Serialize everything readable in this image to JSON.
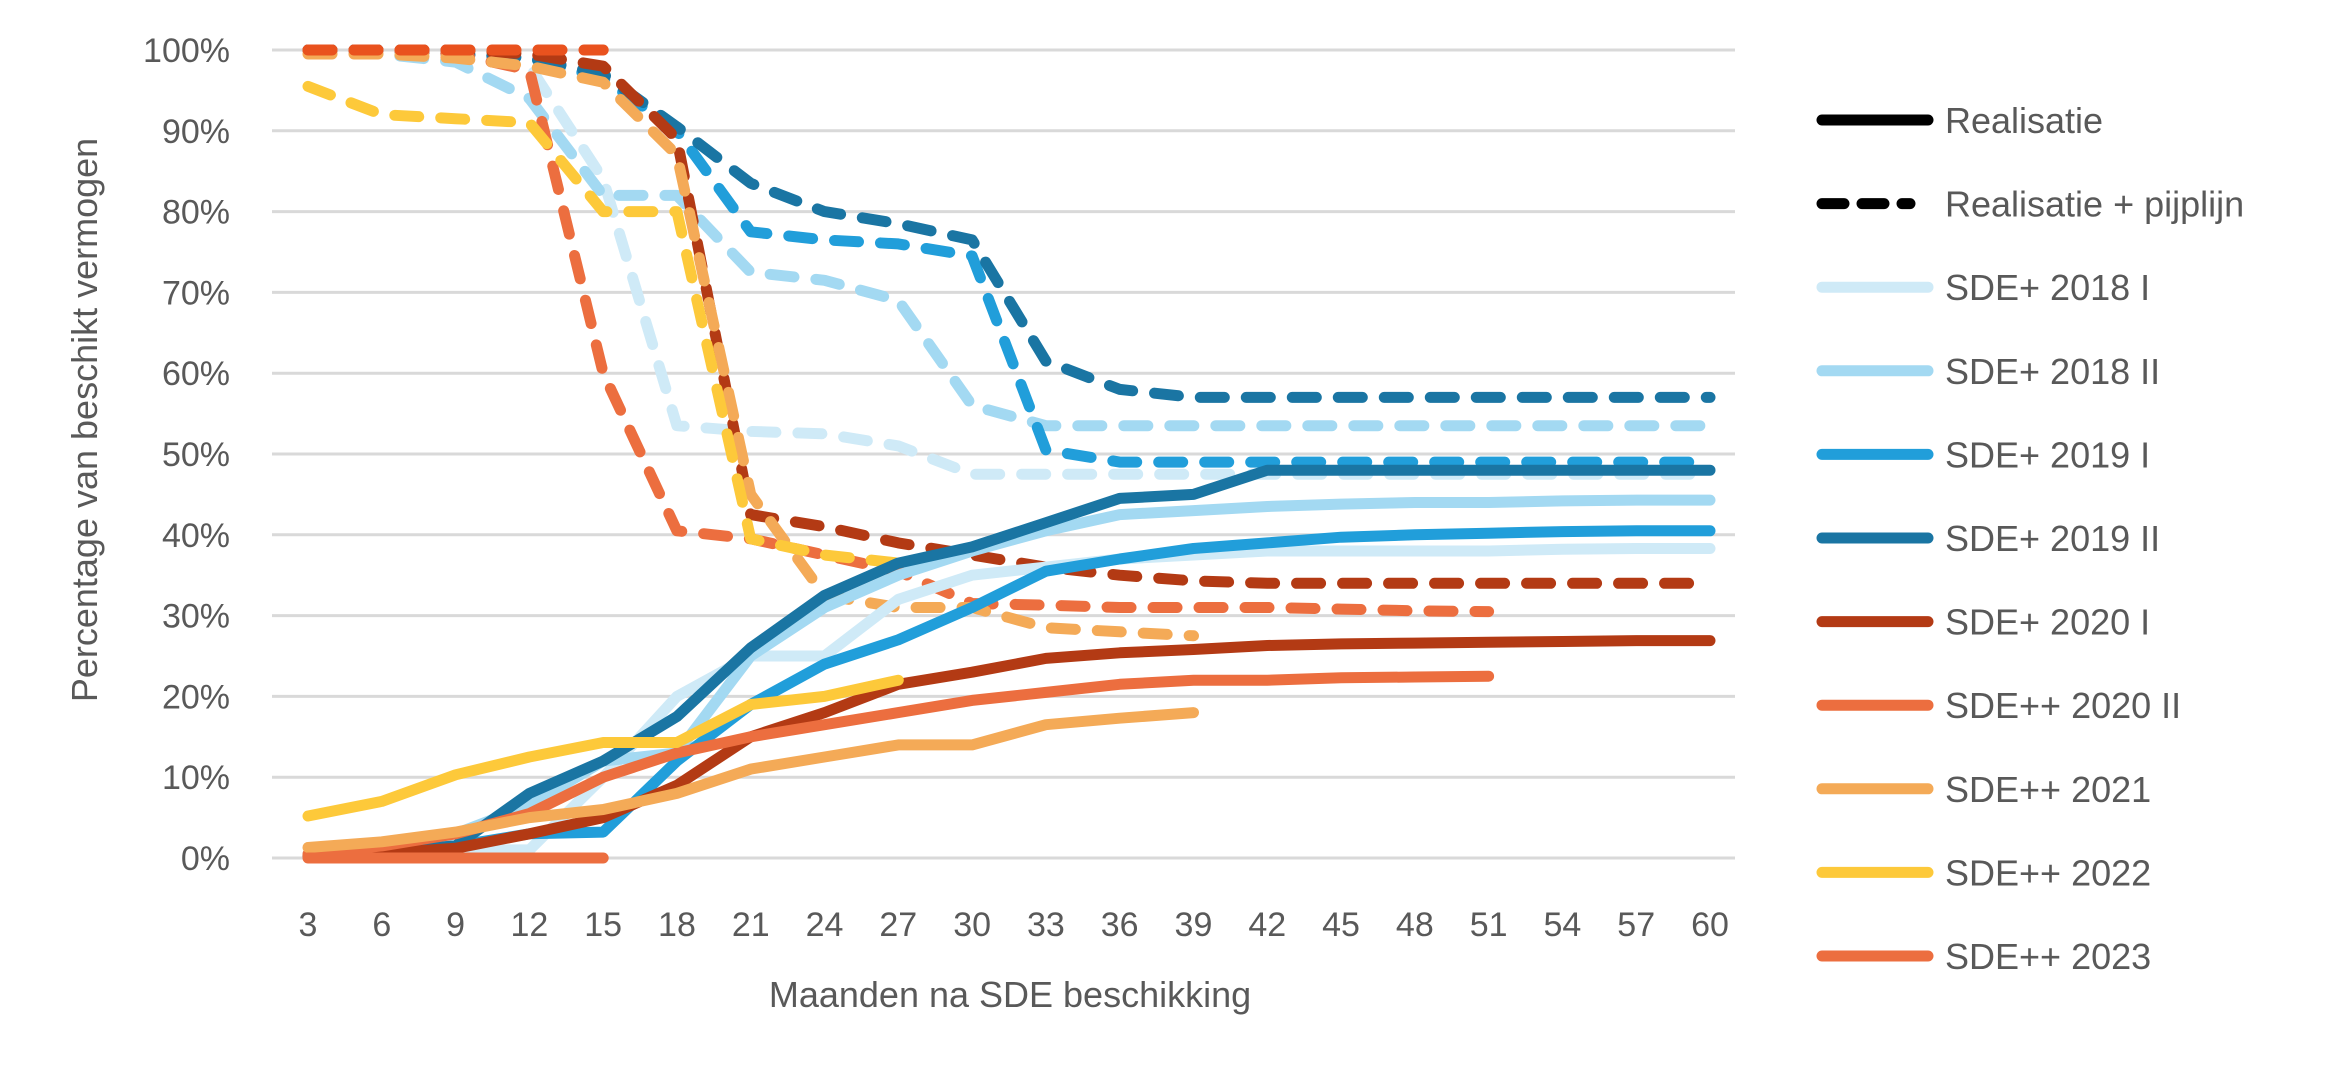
{
  "chart_data": {
    "type": "line",
    "title": "",
    "xlabel": "Maanden na SDE beschikking",
    "ylabel": "Percentage van beschikt vermogen",
    "x": [
      3,
      6,
      9,
      12,
      15,
      18,
      21,
      24,
      27,
      30,
      33,
      36,
      39,
      42,
      45,
      48,
      51,
      54,
      57,
      60
    ],
    "x_tick_labels": [
      "3",
      "6",
      "9",
      "12",
      "15",
      "18",
      "21",
      "24",
      "27",
      "30",
      "33",
      "36",
      "39",
      "42",
      "45",
      "48",
      "51",
      "54",
      "57",
      "60"
    ],
    "ylim": [
      0,
      100
    ],
    "y_tick_labels": [
      "0%",
      "10%",
      "20%",
      "30%",
      "40%",
      "50%",
      "60%",
      "70%",
      "80%",
      "90%",
      "100%"
    ],
    "y_ticks": [
      0,
      10,
      20,
      30,
      40,
      50,
      60,
      70,
      80,
      90,
      100
    ],
    "grid": true,
    "legend_position": "right",
    "legend": [
      {
        "label": "Realisatie",
        "style": "solid",
        "color": "#000000"
      },
      {
        "label": "Realisatie + pijplijn",
        "style": "dashed",
        "color": "#000000"
      },
      {
        "label": "SDE+ 2018 I",
        "style": "solid",
        "color": "#CFEAF7"
      },
      {
        "label": "SDE+ 2018 II",
        "style": "solid",
        "color": "#A3D9F2"
      },
      {
        "label": "SDE+ 2019 I",
        "style": "solid",
        "color": "#219EDA"
      },
      {
        "label": "SDE+ 2019 II",
        "style": "solid",
        "color": "#1A75A3"
      },
      {
        "label": "SDE+ 2020 I",
        "style": "solid",
        "color": "#B33A14"
      },
      {
        "label": "SDE++ 2020 II",
        "style": "solid",
        "color": "#EC6E3F"
      },
      {
        "label": "SDE++ 2021",
        "style": "solid",
        "color": "#F4AA57"
      },
      {
        "label": "SDE++ 2022",
        "style": "solid",
        "color": "#FDC93A"
      },
      {
        "label": "SDE++ 2023",
        "style": "solid",
        "color": "#EC6E3F"
      }
    ],
    "series": [
      {
        "name": "SDE+ 2018 I",
        "kind": "Realisatie",
        "color": "#CFEAF7",
        "values": [
          0.5,
          0.8,
          1,
          1,
          10,
          20,
          25,
          25,
          32,
          35,
          36,
          37,
          37.5,
          38,
          38,
          38,
          38,
          38.2,
          38.3,
          38.3
        ]
      },
      {
        "name": "SDE+ 2018 II",
        "kind": "Realisatie",
        "color": "#A3D9F2",
        "values": [
          0.5,
          1,
          3,
          6.5,
          12,
          13,
          25,
          31,
          35,
          38,
          40.5,
          42.5,
          43,
          43.5,
          43.8,
          44,
          44,
          44.2,
          44.3,
          44.3
        ]
      },
      {
        "name": "SDE+ 2019 I",
        "kind": "Realisatie",
        "color": "#219EDA",
        "values": [
          0.3,
          0.8,
          1.5,
          3,
          3.2,
          12,
          19,
          24,
          27,
          31,
          35.5,
          37,
          38.3,
          39,
          39.7,
          40,
          40.2,
          40.4,
          40.5,
          40.5
        ]
      },
      {
        "name": "SDE+ 2019 II",
        "kind": "Realisatie",
        "color": "#1A75A3",
        "values": [
          0.2,
          0.6,
          1.5,
          8,
          12,
          17.5,
          26,
          32.5,
          36.5,
          38.5,
          41.5,
          44.5,
          45,
          48,
          48,
          48,
          48,
          48,
          48,
          48
        ]
      },
      {
        "name": "SDE+ 2020 I",
        "kind": "Realisatie",
        "color": "#B33A14",
        "values": [
          0.2,
          0.6,
          1.2,
          3,
          5,
          9,
          15,
          18,
          21.5,
          23,
          24.7,
          25.4,
          25.8,
          26.3,
          26.5,
          26.6,
          26.7,
          26.8,
          26.9,
          26.9
        ]
      },
      {
        "name": "SDE++ 2020 II",
        "kind": "Realisatie",
        "color": "#EC6E3F",
        "values": [
          0.5,
          1.5,
          3,
          5.5,
          10,
          13,
          15,
          16.5,
          18,
          19.5,
          20.5,
          21.5,
          22,
          22,
          22.3,
          22.4,
          22.5,
          null,
          null,
          null
        ]
      },
      {
        "name": "SDE++ 2021",
        "kind": "Realisatie",
        "color": "#F4AA57",
        "values": [
          1.3,
          2,
          3.2,
          5,
          6,
          8,
          11,
          12.5,
          14,
          14,
          16.5,
          17.3,
          18,
          null,
          null,
          null,
          null,
          null,
          null,
          null
        ]
      },
      {
        "name": "SDE++ 2022",
        "kind": "Realisatie",
        "color": "#FDC93A",
        "values": [
          5.2,
          7,
          10.3,
          12.5,
          14.3,
          14.3,
          19,
          20,
          22,
          null,
          null,
          null,
          null,
          null,
          null,
          null,
          null,
          null,
          null,
          null
        ]
      },
      {
        "name": "SDE++ 2023",
        "kind": "Realisatie",
        "color": "#EC6E3F",
        "values": [
          0,
          0,
          0,
          0,
          0,
          null,
          null,
          null,
          null,
          null,
          null,
          null,
          null,
          null,
          null,
          null,
          null,
          null,
          null,
          null
        ]
      },
      {
        "name": "SDE+ 2018 I",
        "kind": "Realisatie + pijplijn",
        "color": "#CFEAF7",
        "values": [
          100,
          100,
          99.5,
          98,
          84,
          53.5,
          52.8,
          52.5,
          51,
          47.5,
          47.5,
          47.5,
          47.5,
          47.5,
          47.5,
          47.5,
          47.5,
          47.5,
          47.5,
          47.5
        ]
      },
      {
        "name": "SDE+ 2018 II",
        "kind": "Realisatie + pijplijn",
        "color": "#A3D9F2",
        "values": [
          100,
          99.5,
          98.5,
          94,
          82,
          82,
          72.5,
          71.5,
          69,
          56,
          53.5,
          53.5,
          53.5,
          53.5,
          53.5,
          53.5,
          53.5,
          53.5,
          53.5,
          53.5
        ]
      },
      {
        "name": "SDE+ 2019 I",
        "kind": "Realisatie + pijplijn",
        "color": "#219EDA",
        "values": [
          100,
          100,
          99.5,
          99,
          96.5,
          90,
          77.5,
          76.5,
          76,
          74.5,
          50.5,
          49,
          49,
          49,
          49,
          49,
          49,
          49,
          49,
          49
        ]
      },
      {
        "name": "SDE+ 2019 II",
        "kind": "Realisatie + pijplijn",
        "color": "#1A75A3",
        "values": [
          100,
          100,
          99.5,
          99,
          97,
          90.5,
          83.5,
          80,
          78.5,
          76.5,
          61.5,
          58,
          57,
          57,
          57,
          57,
          57,
          57,
          57,
          57
        ]
      },
      {
        "name": "SDE+ 2020 I",
        "kind": "Realisatie + pijplijn",
        "color": "#B33A14",
        "values": [
          100,
          100,
          100,
          99.5,
          98,
          89,
          42.5,
          41,
          39,
          37.5,
          36,
          35,
          34.3,
          34,
          34,
          34,
          34,
          34,
          34,
          34
        ]
      },
      {
        "name": "SDE++ 2020 II",
        "kind": "Realisatie + pijplijn",
        "color": "#EC6E3F",
        "values": [
          100,
          100,
          99.5,
          97.5,
          60,
          40.5,
          39.5,
          37.5,
          35.5,
          31.5,
          31.3,
          31,
          31,
          31,
          30.8,
          30.6,
          30.5,
          null,
          null,
          null
        ]
      },
      {
        "name": "SDE++ 2021",
        "kind": "Realisatie + pijplijn",
        "color": "#F4AA57",
        "values": [
          99.5,
          99.5,
          99,
          98,
          96,
          87,
          45,
          32.5,
          31,
          31,
          28.5,
          28,
          27.5,
          null,
          null,
          null,
          null,
          null,
          null,
          null
        ]
      },
      {
        "name": "SDE++ 2022",
        "kind": "Realisatie + pijplijn",
        "color": "#FDC93A",
        "values": [
          95.5,
          92,
          91.5,
          91,
          80,
          80,
          39.5,
          37.5,
          36.5,
          null,
          null,
          null,
          null,
          null,
          null,
          null,
          null,
          null,
          null,
          null
        ]
      },
      {
        "name": "SDE++ 2023",
        "kind": "Realisatie + pijplijn",
        "color": "#E9521E",
        "values": [
          100,
          100,
          100,
          100,
          100,
          null,
          null,
          null,
          null,
          null,
          null,
          null,
          null,
          null,
          null,
          null,
          null,
          null,
          null,
          null
        ]
      }
    ]
  }
}
